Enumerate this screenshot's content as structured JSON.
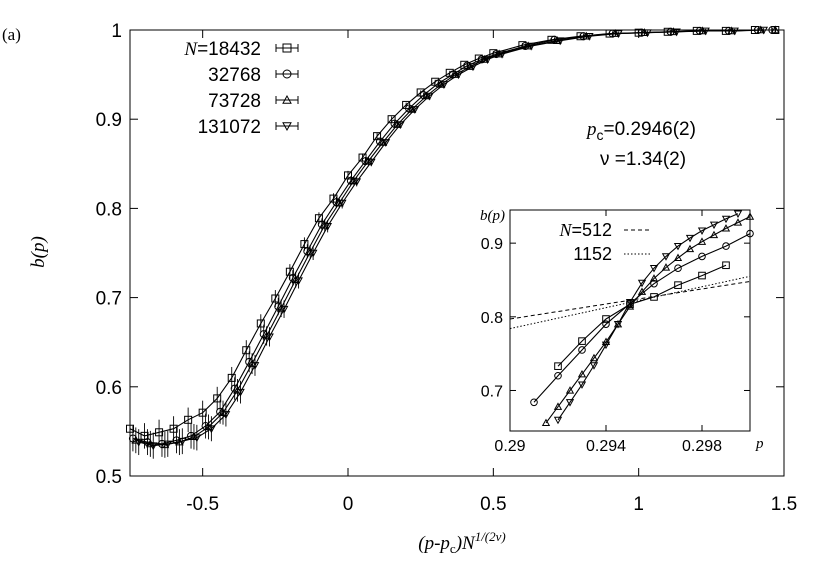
{
  "panel_label": "(a)",
  "annotations": {
    "pc_text": "=0.2946(2)",
    "nu_text": "=1.34(2)"
  },
  "chart_data": [
    {
      "type": "line",
      "role": "main",
      "xlabel": "(p-p_c)N^{1/(2ν)}",
      "ylabel": "b(p)",
      "xlim": [
        -0.75,
        1.5
      ],
      "ylim": [
        0.5,
        1.0
      ],
      "xticks": [
        -0.5,
        0,
        0.5,
        1,
        1.5
      ],
      "xtick_labels": [
        "-0.5",
        "0",
        "0.5",
        "1",
        "1.5"
      ],
      "yticks": [
        0.5,
        0.6,
        0.7,
        0.8,
        0.9,
        1.0
      ],
      "ytick_labels": [
        "0.5",
        "0.6",
        "0.7",
        "0.8",
        "0.9",
        "1"
      ],
      "legend_position": "top-left",
      "series": [
        {
          "name": "N=18432",
          "label_prefix": "N",
          "label_value": "=18432",
          "marker": "square",
          "x": [
            -0.75,
            -0.7,
            -0.65,
            -0.6,
            -0.55,
            -0.5,
            -0.45,
            -0.4,
            -0.35,
            -0.3,
            -0.25,
            -0.2,
            -0.15,
            -0.1,
            -0.05,
            0,
            0.05,
            0.1,
            0.15,
            0.2,
            0.25,
            0.3,
            0.35,
            0.4,
            0.45,
            0.5,
            0.6,
            0.7,
            0.8,
            0.9,
            1.0,
            1.1,
            1.2,
            1.3,
            1.4,
            1.47
          ],
          "y": [
            0.553,
            0.545,
            0.549,
            0.553,
            0.563,
            0.571,
            0.587,
            0.61,
            0.641,
            0.671,
            0.699,
            0.729,
            0.76,
            0.789,
            0.811,
            0.837,
            0.857,
            0.881,
            0.9,
            0.916,
            0.93,
            0.942,
            0.952,
            0.961,
            0.968,
            0.974,
            0.983,
            0.989,
            0.993,
            0.996,
            0.997,
            0.998,
            0.999,
            0.999,
            1.0,
            1.0
          ]
        },
        {
          "name": "32768",
          "label_prefix": "",
          "label_value": "32768",
          "marker": "circle",
          "x": [
            -0.74,
            -0.69,
            -0.64,
            -0.59,
            -0.54,
            -0.49,
            -0.44,
            -0.39,
            -0.34,
            -0.29,
            -0.24,
            -0.19,
            -0.14,
            -0.09,
            -0.04,
            0.01,
            0.06,
            0.11,
            0.16,
            0.21,
            0.26,
            0.31,
            0.36,
            0.41,
            0.46,
            0.51,
            0.61,
            0.71,
            0.81,
            0.91,
            1.01,
            1.11,
            1.21,
            1.31,
            1.41,
            1.46
          ],
          "y": [
            0.542,
            0.538,
            0.536,
            0.54,
            0.545,
            0.556,
            0.572,
            0.598,
            0.628,
            0.659,
            0.69,
            0.722,
            0.752,
            0.782,
            0.807,
            0.831,
            0.853,
            0.875,
            0.895,
            0.912,
            0.927,
            0.94,
            0.95,
            0.96,
            0.967,
            0.973,
            0.982,
            0.989,
            0.993,
            0.996,
            0.997,
            0.998,
            0.999,
            0.999,
            1.0,
            1.0
          ]
        },
        {
          "name": "73728",
          "label_prefix": "",
          "label_value": "73728",
          "marker": "triangle-up",
          "x": [
            -0.73,
            -0.68,
            -0.63,
            -0.58,
            -0.53,
            -0.48,
            -0.43,
            -0.38,
            -0.33,
            -0.28,
            -0.23,
            -0.18,
            -0.13,
            -0.08,
            -0.03,
            0.02,
            0.07,
            0.12,
            0.17,
            0.22,
            0.27,
            0.32,
            0.37,
            0.42,
            0.47,
            0.52,
            0.62,
            0.72,
            0.82,
            0.92,
            1.02,
            1.12,
            1.22,
            1.32,
            1.42,
            1.47
          ],
          "y": [
            0.54,
            0.536,
            0.535,
            0.538,
            0.544,
            0.555,
            0.571,
            0.596,
            0.626,
            0.657,
            0.688,
            0.72,
            0.751,
            0.781,
            0.806,
            0.831,
            0.853,
            0.874,
            0.894,
            0.911,
            0.926,
            0.939,
            0.95,
            0.959,
            0.967,
            0.973,
            0.982,
            0.988,
            0.993,
            0.996,
            0.997,
            0.998,
            0.999,
            0.999,
            1.0,
            1.0
          ]
        },
        {
          "name": "131072",
          "label_prefix": "",
          "label_value": "131072",
          "marker": "triangle-down",
          "x": [
            -0.72,
            -0.67,
            -0.62,
            -0.57,
            -0.52,
            -0.47,
            -0.42,
            -0.37,
            -0.32,
            -0.27,
            -0.22,
            -0.17,
            -0.12,
            -0.07,
            -0.02,
            0.03,
            0.08,
            0.13,
            0.18,
            0.23,
            0.28,
            0.33,
            0.38,
            0.43,
            0.48,
            0.53,
            0.63,
            0.73,
            0.83,
            0.93,
            1.03,
            1.13,
            1.23,
            1.33,
            1.43
          ],
          "y": [
            0.538,
            0.534,
            0.536,
            0.539,
            0.543,
            0.553,
            0.569,
            0.594,
            0.624,
            0.656,
            0.687,
            0.719,
            0.75,
            0.78,
            0.806,
            0.83,
            0.852,
            0.874,
            0.894,
            0.911,
            0.926,
            0.939,
            0.95,
            0.959,
            0.967,
            0.973,
            0.982,
            0.988,
            0.993,
            0.996,
            0.997,
            0.998,
            0.999,
            0.999,
            1.0
          ]
        }
      ]
    },
    {
      "type": "line",
      "role": "inset",
      "xlabel": "p",
      "ylabel": "b(p)",
      "xlim": [
        0.29,
        0.3
      ],
      "ylim": [
        0.645,
        0.945
      ],
      "xticks": [
        0.29,
        0.294,
        0.298
      ],
      "xtick_labels": [
        "0.29",
        "0.294",
        "0.298"
      ],
      "yticks": [
        0.7,
        0.8,
        0.9
      ],
      "ytick_labels": [
        "0.7",
        "0.8",
        "0.9"
      ],
      "lines": [
        {
          "name": "N=512",
          "label_prefix": "N",
          "label_value": "=512",
          "dash": "dashed",
          "x": [
            0.29,
            0.3
          ],
          "y": [
            0.797,
            0.848
          ]
        },
        {
          "name": "1152",
          "label_prefix": "",
          "label_value": "1152",
          "dash": "dotted",
          "x": [
            0.29,
            0.3
          ],
          "y": [
            0.784,
            0.855
          ]
        }
      ],
      "series": [
        {
          "name": "N=18432",
          "marker": "square",
          "x": [
            0.292,
            0.293,
            0.294,
            0.295,
            0.296,
            0.297,
            0.298,
            0.299
          ],
          "y": [
            0.733,
            0.767,
            0.797,
            0.817,
            0.827,
            0.843,
            0.856,
            0.87
          ]
        },
        {
          "name": "32768",
          "marker": "circle",
          "x": [
            0.291,
            0.292,
            0.293,
            0.294,
            0.295,
            0.296,
            0.297,
            0.298,
            0.299,
            0.3
          ],
          "y": [
            0.684,
            0.72,
            0.755,
            0.79,
            0.818,
            0.845,
            0.866,
            0.882,
            0.896,
            0.913
          ]
        },
        {
          "name": "73728",
          "marker": "triangle-up",
          "x": [
            0.2915,
            0.292,
            0.2925,
            0.293,
            0.2935,
            0.294,
            0.2945,
            0.295,
            0.2955,
            0.296,
            0.2965,
            0.297,
            0.2975,
            0.298,
            0.2985,
            0.299,
            0.2995,
            0.3
          ],
          "y": [
            0.656,
            0.678,
            0.7,
            0.722,
            0.744,
            0.766,
            0.79,
            0.814,
            0.834,
            0.852,
            0.867,
            0.88,
            0.892,
            0.902,
            0.911,
            0.92,
            0.928,
            0.936
          ]
        },
        {
          "name": "131072",
          "marker": "triangle-down",
          "x": [
            0.292,
            0.2925,
            0.293,
            0.2935,
            0.294,
            0.2945,
            0.295,
            0.2955,
            0.296,
            0.2965,
            0.297,
            0.2975,
            0.298,
            0.2985,
            0.299,
            0.2995
          ],
          "y": [
            0.66,
            0.684,
            0.708,
            0.734,
            0.762,
            0.79,
            0.82,
            0.846,
            0.866,
            0.882,
            0.896,
            0.907,
            0.917,
            0.925,
            0.933,
            0.94
          ]
        }
      ]
    }
  ]
}
